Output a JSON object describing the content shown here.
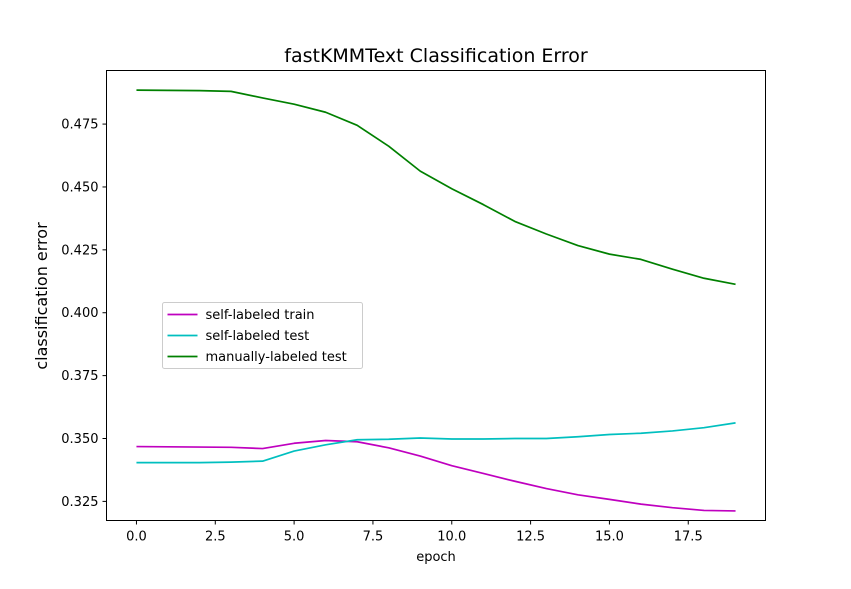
{
  "chart_data": {
    "type": "line",
    "title": "fastKMMText Classification Error",
    "xlabel": "epoch",
    "ylabel": "classification error",
    "xlim": [
      -0.95,
      19.95
    ],
    "ylim": [
      0.3174,
      0.4963
    ],
    "xticks": [
      0.0,
      2.5,
      5.0,
      7.5,
      10.0,
      12.5,
      15.0,
      17.5
    ],
    "xtick_labels": [
      "0.0",
      "2.5",
      "5.0",
      "7.5",
      "10.0",
      "12.5",
      "15.0",
      "17.5"
    ],
    "yticks": [
      0.325,
      0.35,
      0.375,
      0.4,
      0.425,
      0.45,
      0.475
    ],
    "ytick_labels": [
      "0.325",
      "0.350",
      "0.375",
      "0.400",
      "0.425",
      "0.450",
      "0.475"
    ],
    "grid": false,
    "legend_position": "center-left",
    "x": [
      0,
      1,
      2,
      3,
      4,
      5,
      6,
      7,
      8,
      9,
      10,
      11,
      12,
      13,
      14,
      15,
      16,
      17,
      18,
      19
    ],
    "series": [
      {
        "name": "self-labeled train",
        "color": "#bf00bf",
        "values": [
          0.3468,
          0.3467,
          0.3466,
          0.3465,
          0.346,
          0.3481,
          0.3492,
          0.3487,
          0.3463,
          0.343,
          0.3392,
          0.3361,
          0.333,
          0.3301,
          0.3276,
          0.3258,
          0.3239,
          0.3225,
          0.3214,
          0.3212
        ]
      },
      {
        "name": "self-labeled test",
        "color": "#00bfbf",
        "values": [
          0.3404,
          0.3404,
          0.3404,
          0.3406,
          0.341,
          0.345,
          0.3475,
          0.3495,
          0.3497,
          0.3502,
          0.3498,
          0.3498,
          0.35,
          0.35,
          0.3507,
          0.3516,
          0.3521,
          0.353,
          0.3543,
          0.3562
        ]
      },
      {
        "name": "manually-labeled test",
        "color": "#008000",
        "values": [
          0.4885,
          0.4884,
          0.4883,
          0.488,
          0.4854,
          0.4829,
          0.4797,
          0.4745,
          0.4662,
          0.4563,
          0.4493,
          0.443,
          0.4363,
          0.4313,
          0.4267,
          0.4233,
          0.4212,
          0.4173,
          0.4137,
          0.4113
        ]
      }
    ]
  }
}
